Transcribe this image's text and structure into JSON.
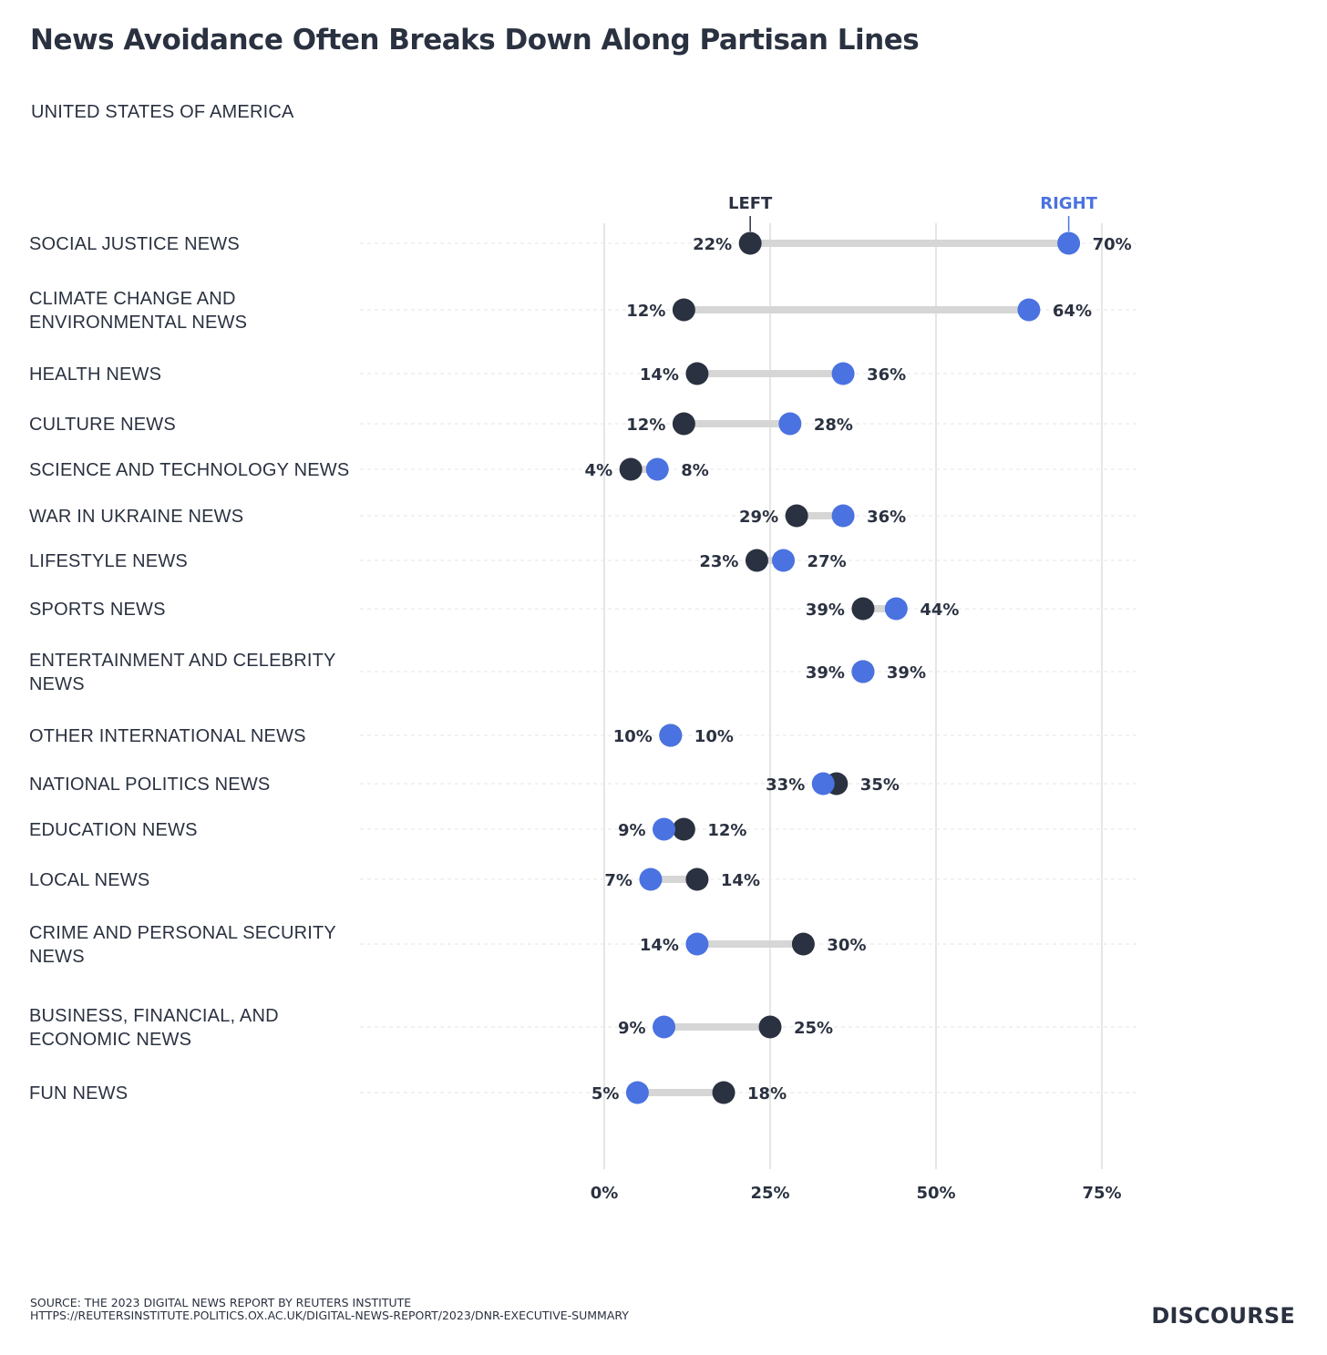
{
  "title": "News Avoidance Often Breaks Down Along Partisan Lines",
  "subtitle": "UNITED STATES OF AMERICA",
  "source_line1": "SOURCE: THE 2023 DIGITAL NEWS REPORT BY REUTERS INSTITUTE",
  "source_line2": "HTTPS://REUTERSINSTITUTE.POLITICS.OX.AC.UK/DIGITAL-NEWS-REPORT/2023/DNR-EXECUTIVE-SUMMARY",
  "brand": "DISCOURSE",
  "colors": {
    "left": "#2a3140",
    "right": "#4a72e0",
    "connector": "#d6d6d6",
    "grid": "#d4d4d4"
  },
  "chart_data": {
    "type": "dumbbell",
    "title": "News Avoidance Often Breaks Down Along Partisan Lines",
    "subtitle": "UNITED STATES OF AMERICA",
    "xlim": [
      0,
      75
    ],
    "xticks": [
      0,
      25,
      50,
      75
    ],
    "xtick_labels": [
      "0%",
      "25%",
      "50%",
      "75%"
    ],
    "grid": true,
    "series": [
      {
        "name": "LEFT",
        "color": "#2a3140"
      },
      {
        "name": "RIGHT",
        "color": "#4a72e0"
      }
    ],
    "categories": [
      {
        "label": [
          "SOCIAL JUSTICE NEWS"
        ],
        "left": 22,
        "right": 70
      },
      {
        "label": [
          "CLIMATE CHANGE AND",
          "ENVIRONMENTAL NEWS"
        ],
        "left": 12,
        "right": 64
      },
      {
        "label": [
          "HEALTH NEWS"
        ],
        "left": 14,
        "right": 36
      },
      {
        "label": [
          "CULTURE NEWS"
        ],
        "left": 12,
        "right": 28
      },
      {
        "label": [
          "SCIENCE AND TECHNOLOGY NEWS"
        ],
        "left": 4,
        "right": 8
      },
      {
        "label": [
          "WAR IN UKRAINE NEWS"
        ],
        "left": 29,
        "right": 36
      },
      {
        "label": [
          "LIFESTYLE NEWS"
        ],
        "left": 23,
        "right": 27
      },
      {
        "label": [
          "SPORTS NEWS"
        ],
        "left": 39,
        "right": 44
      },
      {
        "label": [
          "ENTERTAINMENT AND CELEBRITY",
          "NEWS"
        ],
        "left": 39,
        "right": 39
      },
      {
        "label": [
          "OTHER INTERNATIONAL NEWS"
        ],
        "left": 10,
        "right": 10
      },
      {
        "label": [
          "NATIONAL POLITICS NEWS"
        ],
        "left": 35,
        "right": 33
      },
      {
        "label": [
          "EDUCATION NEWS"
        ],
        "left": 12,
        "right": 9
      },
      {
        "label": [
          "LOCAL NEWS"
        ],
        "left": 14,
        "right": 7
      },
      {
        "label": [
          "CRIME AND PERSONAL SECURITY",
          "NEWS"
        ],
        "left": 30,
        "right": 14
      },
      {
        "label": [
          "BUSINESS, FINANCIAL, AND",
          "ECONOMIC NEWS"
        ],
        "left": 25,
        "right": 9
      },
      {
        "label": [
          "FUN NEWS"
        ],
        "left": 18,
        "right": 5
      }
    ]
  }
}
